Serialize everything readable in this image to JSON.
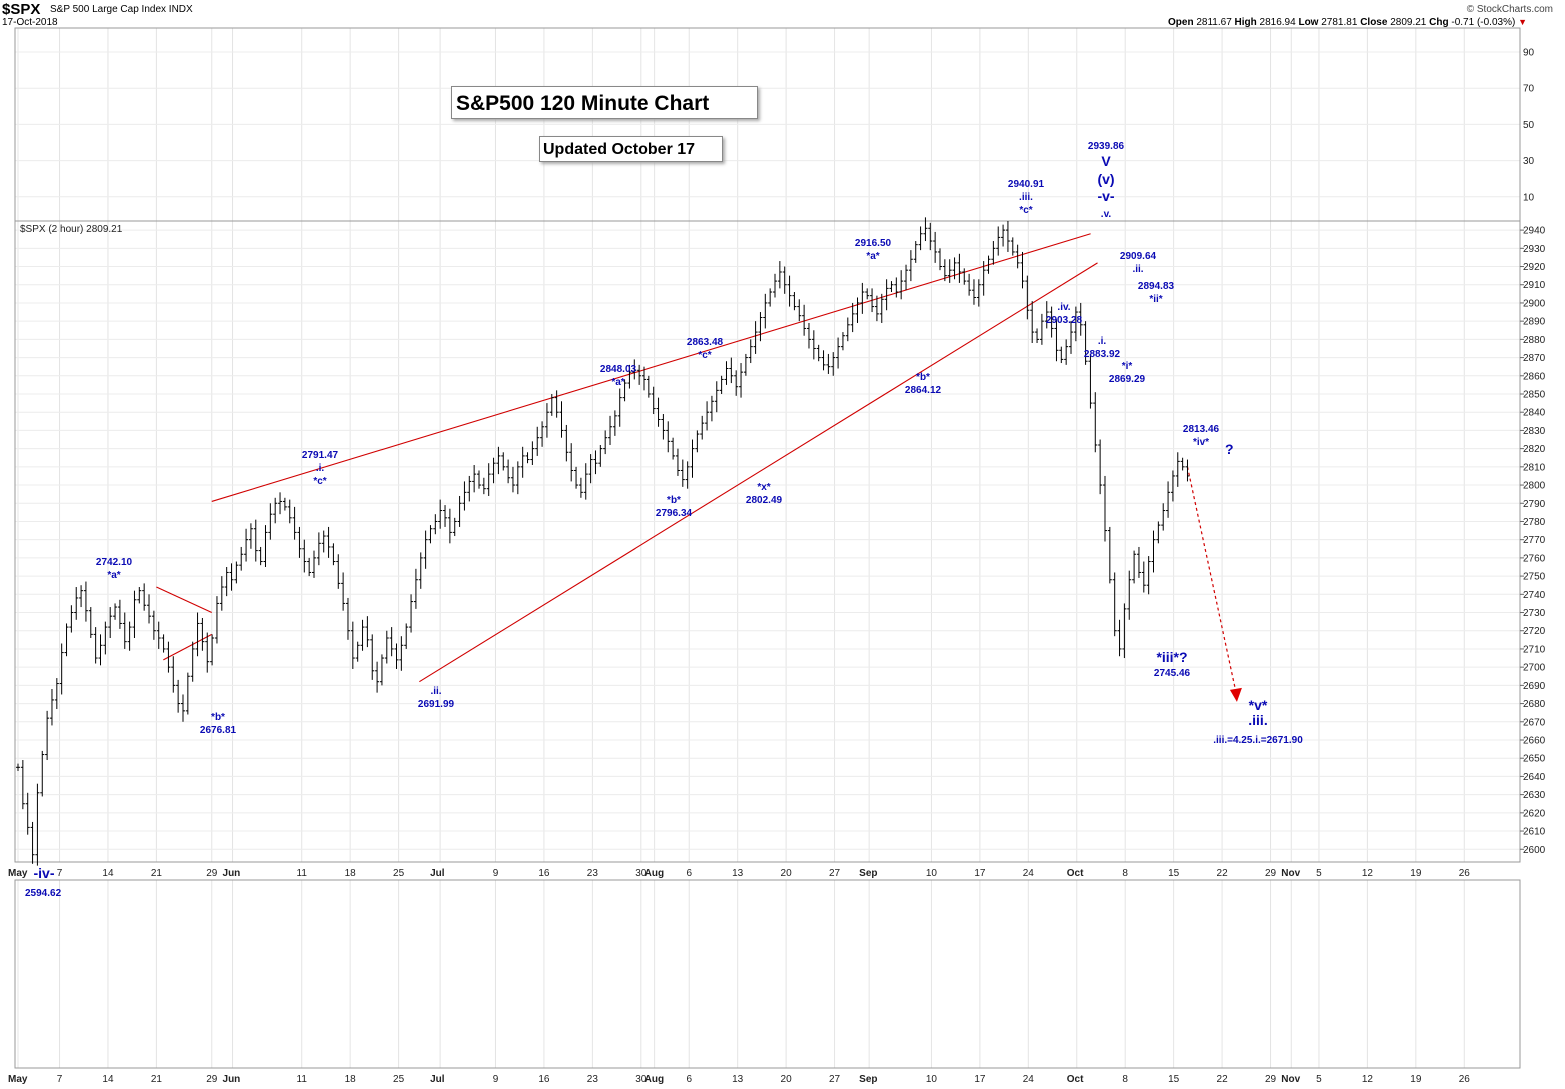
{
  "header": {
    "symbol": "$SPX",
    "description": "S&P 500 Large Cap Index  INDX",
    "date": "17-Oct-2018",
    "brand": "© StockCharts.com",
    "open_label": "Open",
    "open": "2811.67",
    "high_label": "High",
    "high": "2816.94",
    "low_label": "Low",
    "low": "2781.81",
    "close_label": "Close",
    "close": "2809.21",
    "chg_label": "Chg",
    "chg": "-0.71 (-0.03%)",
    "chg_arrow": "▼"
  },
  "titles": {
    "main": "S&P500 120 Minute Chart",
    "updated": "Updated October 17",
    "series_legend": "$SPX (2 hour) 2809.21"
  },
  "colors": {
    "price": "#000000",
    "trend": "#d00000",
    "labels": "#0a0ab4",
    "grid": "#e4e4e4"
  },
  "chart_data": {
    "type": "line",
    "ylim": [
      2593,
      2945
    ],
    "yticks": [
      2600,
      2610,
      2620,
      2630,
      2640,
      2650,
      2660,
      2670,
      2680,
      2690,
      2700,
      2710,
      2720,
      2730,
      2740,
      2750,
      2760,
      2770,
      2780,
      2790,
      2800,
      2810,
      2820,
      2830,
      2840,
      2850,
      2860,
      2870,
      2880,
      2890,
      2900,
      2910,
      2920,
      2930,
      2940
    ],
    "upper_panel_ticks": [
      "90",
      "70",
      "50",
      "30",
      "10"
    ],
    "xtick_labels": [
      "May",
      "7",
      "14",
      "21",
      "29",
      "Jun",
      "11",
      "18",
      "25",
      "Jul",
      "9",
      "16",
      "23",
      "30",
      "Aug",
      "6",
      "13",
      "20",
      "27",
      "Sep",
      "10",
      "17",
      "24",
      "Oct",
      "8",
      "15",
      "22",
      "29",
      "Nov",
      "5",
      "12",
      "19",
      "26"
    ],
    "bold_month_labels": [
      "May",
      "Jun",
      "Jul",
      "Aug",
      "Sep",
      "Oct",
      "Nov"
    ],
    "bottom_labels": [
      "May",
      "7",
      "14",
      "21",
      "29",
      "Jun",
      "11",
      "18",
      "25",
      "Jul",
      "9",
      "16",
      "23",
      "30",
      "Aug",
      "6",
      "13",
      "20",
      "27",
      "Sep",
      "10",
      "17",
      "24",
      "Oct",
      "8",
      "15",
      "22",
      "29",
      "Nov",
      "5",
      "12",
      "19",
      "26"
    ],
    "series": [
      {
        "values": [
          2645,
          2625,
          2612,
          2597,
          2631,
          2652,
          2672,
          2682,
          2691,
          2708,
          2722,
          2730,
          2738,
          2742,
          2731,
          2718,
          2705,
          2712,
          2722,
          2728,
          2733,
          2724,
          2714,
          2722,
          2737,
          2742,
          2734,
          2728,
          2720,
          2716,
          2710,
          2700,
          2690,
          2680,
          2676,
          2695,
          2710,
          2724,
          2714,
          2703,
          2716,
          2735,
          2744,
          2752,
          2748,
          2756,
          2762,
          2770,
          2776,
          2764,
          2758,
          2774,
          2784,
          2790,
          2791,
          2788,
          2782,
          2774,
          2765,
          2758,
          2752,
          2760,
          2768,
          2772,
          2766,
          2758,
          2746,
          2735,
          2720,
          2705,
          2712,
          2722,
          2715,
          2698,
          2692,
          2705,
          2716,
          2710,
          2704,
          2712,
          2722,
          2736,
          2748,
          2760,
          2770,
          2776,
          2780,
          2786,
          2782,
          2774,
          2780,
          2790,
          2796,
          2802,
          2806,
          2800,
          2798,
          2806,
          2812,
          2816,
          2810,
          2804,
          2800,
          2810,
          2816,
          2814,
          2820,
          2826,
          2832,
          2840,
          2848,
          2840,
          2830,
          2818,
          2808,
          2800,
          2796,
          2806,
          2814,
          2812,
          2820,
          2826,
          2832,
          2838,
          2848,
          2856,
          2862,
          2863,
          2860,
          2858,
          2850,
          2842,
          2836,
          2830,
          2824,
          2816,
          2808,
          2803,
          2810,
          2820,
          2828,
          2834,
          2840,
          2846,
          2852,
          2858,
          2864,
          2860,
          2854,
          2862,
          2870,
          2876,
          2884,
          2892,
          2900,
          2906,
          2912,
          2917,
          2910,
          2904,
          2898,
          2893,
          2886,
          2880,
          2875,
          2870,
          2866,
          2865,
          2870,
          2876,
          2882,
          2888,
          2894,
          2900,
          2906,
          2904,
          2898,
          2894,
          2902,
          2908,
          2910,
          2906,
          2912,
          2918,
          2924,
          2932,
          2938,
          2941,
          2934,
          2928,
          2920,
          2915,
          2918,
          2922,
          2917,
          2912,
          2907,
          2903,
          2910,
          2918,
          2924,
          2930,
          2936,
          2940,
          2934,
          2928,
          2922,
          2912,
          2896,
          2884,
          2880,
          2890,
          2895,
          2886,
          2874,
          2869,
          2876,
          2884,
          2895,
          2888,
          2868,
          2845,
          2822,
          2800,
          2775,
          2748,
          2720,
          2710,
          2732,
          2748,
          2762,
          2752,
          2745,
          2758,
          2770,
          2778,
          2786,
          2796,
          2805,
          2813,
          2810,
          2805
        ]
      }
    ],
    "trendlines": [
      {
        "name": "upper",
        "from": [
          "May 29",
          2791
        ],
        "to": [
          "Oct 3",
          2938
        ]
      },
      {
        "name": "lower",
        "from": [
          "Jun 28",
          2692
        ],
        "to": [
          "Oct 4",
          2922
        ]
      },
      {
        "name": "triangle-top",
        "from": [
          "May 21",
          2744
        ],
        "to": [
          "May 29",
          2730
        ]
      },
      {
        "name": "triangle-bottom",
        "from": [
          "May 22",
          2704
        ],
        "to": [
          "May 29",
          2718
        ]
      }
    ],
    "projection": {
      "from": [
        "Oct 17",
        2810
      ],
      "to": [
        "Oct 24",
        2682
      ]
    },
    "annotations": [
      {
        "lines": [
          "2742.10",
          "*a*"
        ],
        "at": 2742.1
      },
      {
        "lines": [
          "*b*",
          "2676.81"
        ],
        "at": 2676.81
      },
      {
        "lines": [
          "2791.47",
          ".i.",
          "*c*"
        ],
        "at": 2791.47
      },
      {
        "lines": [
          ".ii.",
          "2691.99"
        ],
        "at": 2691.99
      },
      {
        "lines": [
          "2848.03",
          "*a*"
        ],
        "at": 2848.03
      },
      {
        "lines": [
          "*b*",
          "2796.34"
        ],
        "at": 2796.34
      },
      {
        "lines": [
          "2863.48",
          "*c*"
        ],
        "at": 2863.48
      },
      {
        "lines": [
          "*x*",
          "2802.49"
        ],
        "at": 2802.49
      },
      {
        "lines": [
          "2916.50",
          "*a*"
        ],
        "at": 2916.5
      },
      {
        "lines": [
          "*b*",
          "2864.12"
        ],
        "at": 2864.12
      },
      {
        "lines": [
          "2940.91",
          ".iii.",
          "*c*"
        ],
        "at": 2940.91
      },
      {
        "lines": [
          ".iv.",
          "2903.28"
        ],
        "at": 2903.28
      },
      {
        "lines": [
          "2939.86",
          "V",
          "(v)",
          "-v-",
          ".v."
        ],
        "at": 2939.86
      },
      {
        "lines": [
          "2909.64",
          ".ii."
        ],
        "at": 2909.64
      },
      {
        "lines": [
          ".i.",
          "2883.92"
        ],
        "at": 2883.92
      },
      {
        "lines": [
          "2894.83",
          "*ii*"
        ],
        "at": 2894.83
      },
      {
        "lines": [
          "*i*",
          "2869.29"
        ],
        "at": 2869.29
      },
      {
        "lines": [
          "2813.46",
          "*iv*",
          "?"
        ],
        "at": 2813.46
      },
      {
        "lines": [
          "*iii*?",
          "2745.46"
        ],
        "at": 2745.46
      },
      {
        "lines": [
          "*v*",
          ".iii.",
          ".iii.=4.25.i.=2671.90"
        ],
        "at": 2671.9
      },
      {
        "lines": [
          "-iv-"
        ]
      },
      {
        "lines": [
          "2594.62"
        ],
        "at": 2594.62
      }
    ]
  }
}
